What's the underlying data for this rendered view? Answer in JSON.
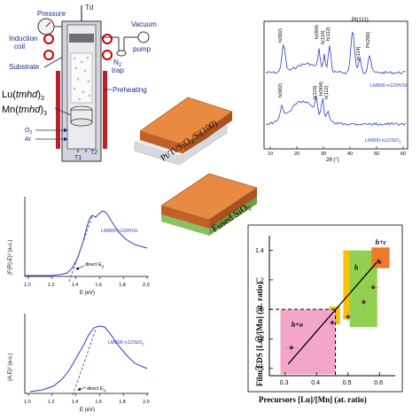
{
  "reactor": {
    "label_td": "Td",
    "label_pressure": "Pressure",
    "label_induction": "Induction",
    "label_coil": "coil",
    "label_substrate": "Substrate",
    "label_n2": "N",
    "label_n2_sub": "2",
    "label_trap": "trap",
    "label_vacuum": "Vacuum",
    "label_pump": "pump",
    "label_lu": "Lu(",
    "label_lu_it": "tmhd",
    "label_lu_end": ")",
    "label_lu_sub": "3",
    "label_mn": "Mn(",
    "label_mn_it": "tmhd",
    "label_mn_end": ")",
    "label_mn_sub": "3",
    "label_preheating": "Preheating",
    "label_o2": "O",
    "label_o2_sub": "2",
    "label_ar": "Ar",
    "label_t1": "T1",
    "label_t2": "T2"
  },
  "substrates": {
    "top_label": "Pt/Ti/SiO",
    "top_label_sub": "2",
    "top_label_end": "/Si(100)",
    "bottom_label": "Fused SiO",
    "bottom_label_sub": "2",
    "colors": {
      "film": "#d9722d",
      "si": "#e8e8ee",
      "fused": "#9fcf78"
    }
  },
  "xrd": {
    "xlabel": "2θ (°)",
    "xticks": [
      "10",
      "20",
      "30",
      "40",
      "50",
      "60"
    ],
    "top_peaks": [
      "h(002)",
      "h(004)",
      "h(110)",
      "h(112)",
      "Pt(111)",
      "h(114)",
      "Pt(200)"
    ],
    "bottom_peaks": [
      "h(002)",
      "h(110)",
      "h(004)",
      "h(112)"
    ],
    "top_sample": "LM800-n12\\Pt/Si",
    "bottom_sample": "LM800-n12\\SiO",
    "bottom_sample_sub": "2",
    "color": "#2a3fc4"
  },
  "tauc_top": {
    "ylabel": "(F(R).E)² (a.u.)",
    "xlabel": "E (eV)",
    "xticks": [
      "1.0",
      "1.2",
      "1.4",
      "1.6",
      "1.8",
      "2.0"
    ],
    "sample": "LM800-n12\\Pt\\Si",
    "annotation": "direct E",
    "annotation_sub": "g"
  },
  "tauc_bottom": {
    "ylabel": "(A.E)² (a.u.)",
    "xlabel": "E (eV)",
    "xticks": [
      "1.0",
      "1.2",
      "1.4",
      "1.6",
      "1.8",
      "2.0"
    ],
    "sample": "LM800-n12\\SiO",
    "sample_sub": "2",
    "annotation": "direct E",
    "annotation_sub": "g"
  },
  "composition": {
    "ylabel": "Film EDS [Lu]/[Mn] (at. ratio)",
    "xlabel": "Precursors [Lu]/[Mn] (at. ratio)",
    "xticks": [
      "0.3",
      "0.4",
      "0.5",
      "0.6"
    ],
    "yticks": [
      "0.6",
      "0.8",
      "1.0",
      "1.2",
      "1.4"
    ],
    "regions": [
      {
        "label": "h+o",
        "color": "#f4a6c9"
      },
      {
        "label": "h",
        "color": "#92d050"
      },
      {
        "label": "h+c",
        "color": "#f07828"
      }
    ],
    "accent": "#f5c400"
  },
  "chart_data": {
    "type": "scatter",
    "title": "",
    "xlabel": "Precursors [Lu]/[Mn] (at. ratio)",
    "ylabel": "Film EDS [Lu]/[Mn] (at. ratio)",
    "xlim": [
      0.25,
      0.65
    ],
    "ylim": [
      0.55,
      1.5
    ],
    "series": [
      {
        "x": [
          0.32,
          0.45,
          0.5,
          0.55,
          0.58,
          0.6
        ],
        "y": [
          0.74,
          0.91,
          0.95,
          1.05,
          1.15,
          1.32
        ]
      }
    ],
    "fit_line": {
      "x": [
        0.31,
        0.6
      ],
      "y": [
        0.63,
        1.34
      ]
    },
    "reference_lines": {
      "x": 0.46,
      "y": 1.0
    }
  }
}
